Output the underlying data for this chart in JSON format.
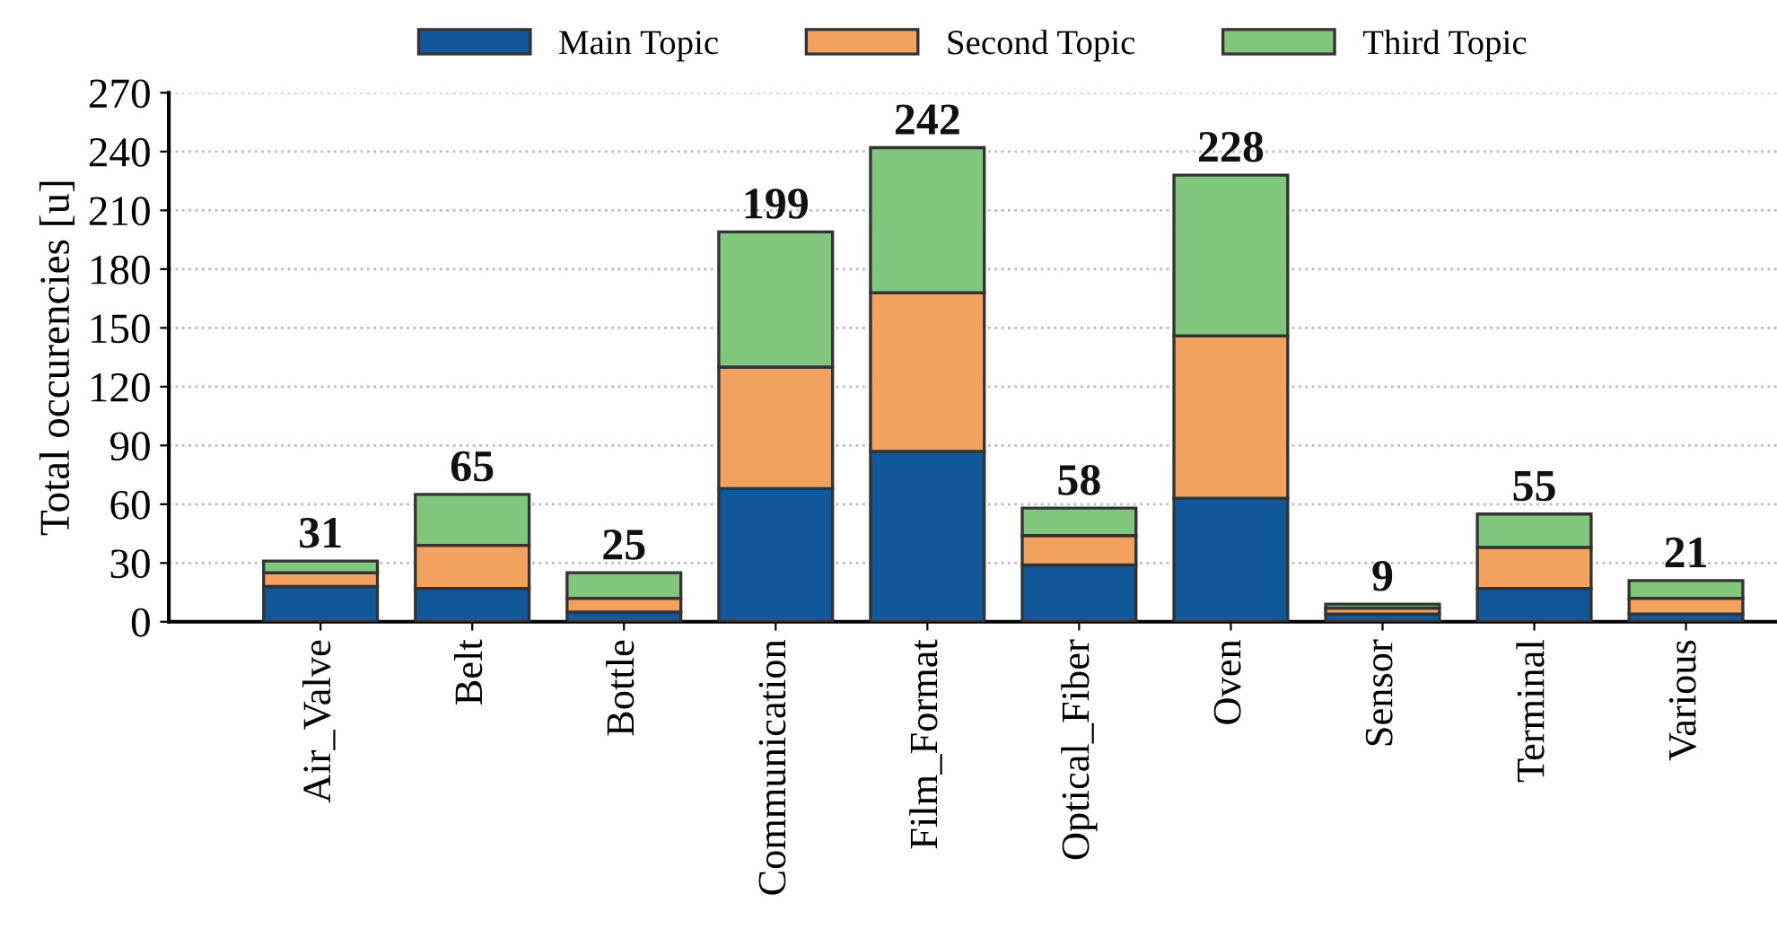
{
  "chart_data": {
    "type": "bar",
    "stacked": true,
    "ylabel": "Total occurencies [u]",
    "categories": [
      "Air_Valve",
      "Belt",
      "Bottle",
      "Communication",
      "Film_Format",
      "Optical_Fiber",
      "Oven",
      "Sensor",
      "Terminal",
      "Various"
    ],
    "series": [
      {
        "name": "Main Topic",
        "color": "#11589a",
        "values": [
          18,
          17,
          5,
          68,
          87,
          29,
          63,
          4,
          17,
          4
        ]
      },
      {
        "name": "Second Topic",
        "color": "#f2a25e",
        "values": [
          7,
          22,
          7,
          62,
          81,
          15,
          83,
          3,
          21,
          8
        ]
      },
      {
        "name": "Third Topic",
        "color": "#80c77d",
        "values": [
          6,
          26,
          13,
          69,
          74,
          14,
          82,
          2,
          17,
          9
        ]
      }
    ],
    "totals": [
      "31",
      "65",
      "25",
      "199",
      "242",
      "58",
      "228",
      "9",
      "55",
      "21"
    ],
    "ylim": [
      0,
      270
    ],
    "yticks": [
      0,
      30,
      60,
      90,
      120,
      150,
      180,
      210,
      240,
      270
    ],
    "grid": "y",
    "legend": "top"
  }
}
